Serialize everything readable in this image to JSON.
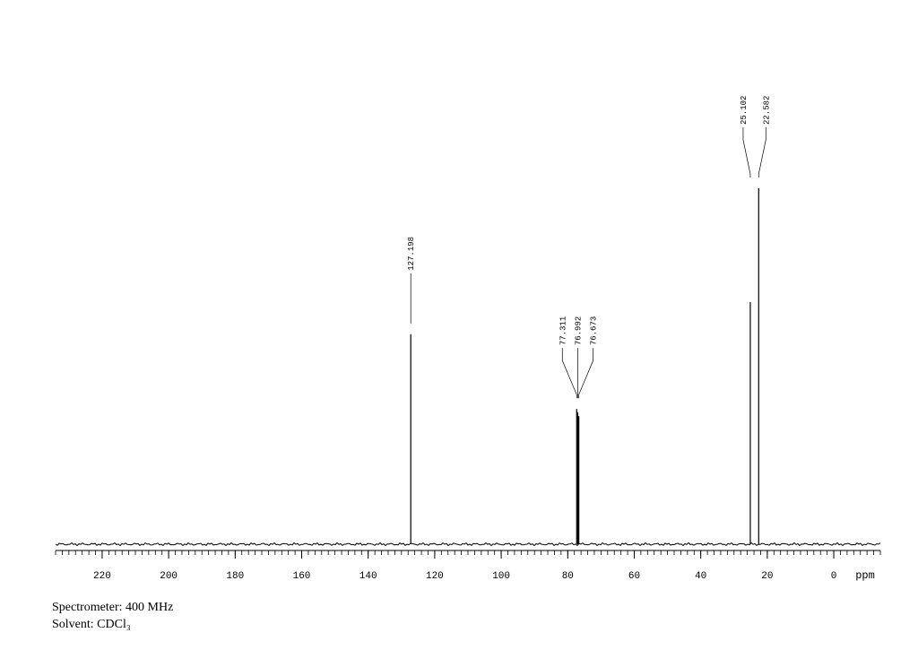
{
  "chart_data": {
    "type": "spectrum",
    "x": [
      127.198,
      77.311,
      76.992,
      76.673,
      25.102,
      22.582
    ],
    "values": [
      59,
      38,
      37,
      36,
      68,
      100
    ],
    "color": "#000000",
    "xlim": [
      234,
      -14
    ],
    "ylim": [
      0,
      100
    ],
    "xticks": [
      220,
      200,
      180,
      160,
      140,
      120,
      100,
      80,
      60,
      40,
      20,
      0
    ],
    "xminor_step": 2,
    "xlabel": "ppm",
    "notes": [
      "Spectrometer: 400 MHz",
      "Solvent: CDCl₃"
    ]
  }
}
